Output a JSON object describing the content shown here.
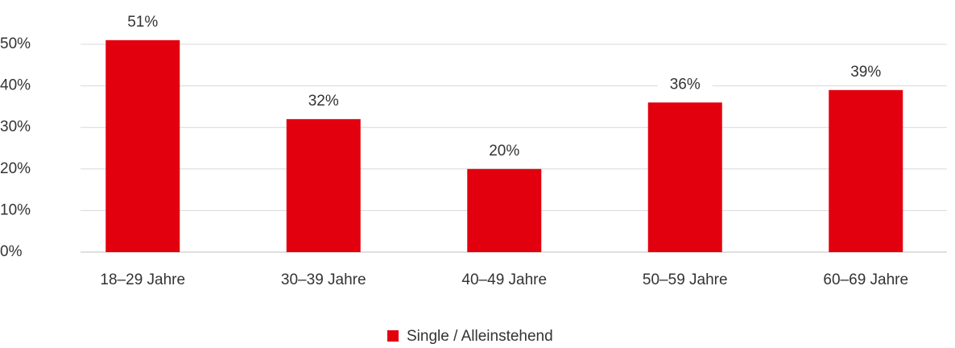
{
  "chart_data": {
    "type": "bar",
    "categories": [
      "18–29 Jahre",
      "30–39 Jahre",
      "40–49 Jahre",
      "50–59 Jahre",
      "60–69 Jahre"
    ],
    "series": [
      {
        "name": "Single / Alleinstehend",
        "color": "#e2000f",
        "values": [
          51,
          32,
          20,
          36,
          39
        ],
        "value_labels": [
          "51%",
          "32%",
          "20%",
          "36%",
          "39%"
        ]
      }
    ],
    "ylim": [
      0,
      50
    ],
    "yticks": [
      {
        "value": 0,
        "label": "0%"
      },
      {
        "value": 10,
        "label": "10%"
      },
      {
        "value": 20,
        "label": "20%"
      },
      {
        "value": 30,
        "label": "30%"
      },
      {
        "value": 40,
        "label": "40%"
      },
      {
        "value": 50,
        "label": "50%"
      }
    ],
    "grid": true,
    "legend": "bottom"
  }
}
